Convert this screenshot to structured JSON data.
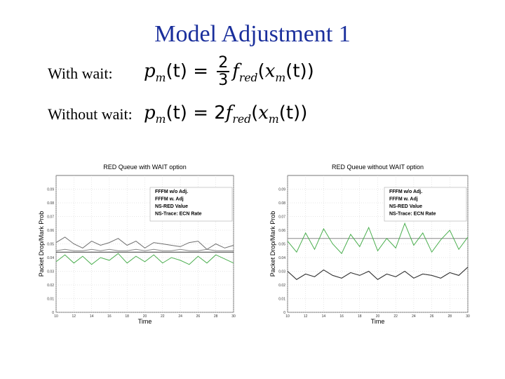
{
  "slide": {
    "title": "Model Adjustment 1",
    "with_wait_label": "With wait:",
    "without_wait_label": "Without wait:",
    "formula_with": {
      "lhs": "p",
      "lhs_sub": "m",
      "lhs_arg": "(t) =",
      "num": "2",
      "den": "3",
      "f": "f",
      "f_sub": "red",
      "arg_open": "(",
      "x": "x",
      "x_sub": "m",
      "arg_close": "(t))"
    },
    "formula_without": {
      "lhs": "p",
      "lhs_sub": "m",
      "lhs_arg": "(t) = 2",
      "f": "f",
      "f_sub": "red",
      "arg_open": "(",
      "x": "x",
      "x_sub": "m",
      "arg_close": "(t))"
    }
  },
  "chart_data": [
    {
      "type": "line",
      "title": "RED Queue with WAIT option",
      "xlabel": "Time",
      "ylabel": "Packet Drop/Mark Prob",
      "xlim": [
        10,
        30
      ],
      "ylim": [
        0,
        0.1
      ],
      "xticks": [
        "10",
        "12",
        "14",
        "16",
        "18",
        "20",
        "22",
        "24",
        "26",
        "28",
        "30"
      ],
      "yticks": [
        "0",
        "0.01",
        "0.02",
        "0.03",
        "0.04",
        "0.05",
        "0.06",
        "0.07",
        "0.08",
        "0.09"
      ],
      "grid": true,
      "legend_position": "top-right",
      "series": [
        {
          "name": "FFFM w/o Adj.",
          "color": "#6e6e6e",
          "x": [
            10,
            11,
            12,
            13,
            14,
            15,
            16,
            17,
            18,
            19,
            20,
            21,
            22,
            23,
            24,
            25,
            26,
            27,
            28,
            29,
            30
          ],
          "values": [
            0.051,
            0.055,
            0.05,
            0.047,
            0.052,
            0.049,
            0.051,
            0.054,
            0.049,
            0.052,
            0.047,
            0.051,
            0.05,
            0.049,
            0.048,
            0.051,
            0.052,
            0.046,
            0.05,
            0.047,
            0.049
          ]
        },
        {
          "name": "FFFM w. Adj",
          "color": "#888888",
          "x": [
            10,
            11,
            12,
            13,
            14,
            15,
            16,
            17,
            18,
            19,
            20,
            21,
            22,
            23,
            24,
            25,
            26,
            27,
            28,
            29,
            30
          ],
          "values": [
            0.045,
            0.046,
            0.045,
            0.045,
            0.046,
            0.045,
            0.046,
            0.045,
            0.045,
            0.046,
            0.045,
            0.046,
            0.045,
            0.045,
            0.046,
            0.045,
            0.045,
            0.046,
            0.045,
            0.045,
            0.045
          ]
        },
        {
          "name": "NS-RED Value",
          "color": "#333333",
          "x": [
            10,
            11,
            12,
            13,
            14,
            15,
            16,
            17,
            18,
            19,
            20,
            21,
            22,
            23,
            24,
            25,
            26,
            27,
            28,
            29,
            30
          ],
          "values": [
            0.044,
            0.044,
            0.044,
            0.044,
            0.044,
            0.044,
            0.044,
            0.044,
            0.044,
            0.044,
            0.044,
            0.044,
            0.044,
            0.044,
            0.044,
            0.044,
            0.044,
            0.044,
            0.044,
            0.044,
            0.044
          ]
        },
        {
          "name": "NS-Trace: ECN Rate",
          "color": "#4caf50",
          "x": [
            10,
            11,
            12,
            13,
            14,
            15,
            16,
            17,
            18,
            19,
            20,
            21,
            22,
            23,
            24,
            25,
            26,
            27,
            28,
            29,
            30
          ],
          "values": [
            0.037,
            0.042,
            0.036,
            0.041,
            0.035,
            0.04,
            0.038,
            0.043,
            0.036,
            0.041,
            0.037,
            0.042,
            0.036,
            0.04,
            0.038,
            0.035,
            0.041,
            0.036,
            0.042,
            0.039,
            0.036
          ]
        }
      ]
    },
    {
      "type": "line",
      "title": "RED Queue without WAIT option",
      "xlabel": "Time",
      "ylabel": "Packet Drop/Mark Prob",
      "xlim": [
        10,
        30
      ],
      "ylim": [
        0,
        0.1
      ],
      "xticks": [
        "10",
        "12",
        "14",
        "16",
        "18",
        "20",
        "22",
        "24",
        "26",
        "28",
        "30"
      ],
      "yticks": [
        "0",
        "0.01",
        "0.02",
        "0.03",
        "0.04",
        "0.05",
        "0.06",
        "0.07",
        "0.08",
        "0.09"
      ],
      "grid": true,
      "legend_position": "top-right",
      "series": [
        {
          "name": "FFFM w/o Adj.",
          "color": "#6e6e6e",
          "x": [
            10,
            11,
            12,
            13,
            14,
            15,
            16,
            17,
            18,
            19,
            20,
            21,
            22,
            23,
            24,
            25,
            26,
            27,
            28,
            29,
            30
          ],
          "values": [
            0.03,
            0.024,
            0.028,
            0.026,
            0.031,
            0.027,
            0.025,
            0.029,
            0.027,
            0.03,
            0.024,
            0.028,
            0.026,
            0.03,
            0.025,
            0.028,
            0.027,
            0.025,
            0.029,
            0.027,
            0.033
          ]
        },
        {
          "name": "FFFM w. Adj",
          "color": "#888888",
          "x": [
            10,
            11,
            12,
            13,
            14,
            15,
            16,
            17,
            18,
            19,
            20,
            21,
            22,
            23,
            24,
            25,
            26,
            27,
            28,
            29,
            30
          ],
          "values": [
            0.054,
            0.054,
            0.054,
            0.054,
            0.054,
            0.054,
            0.054,
            0.054,
            0.054,
            0.054,
            0.054,
            0.054,
            0.054,
            0.054,
            0.054,
            0.054,
            0.054,
            0.054,
            0.054,
            0.054,
            0.054
          ]
        },
        {
          "name": "NS-RED Value",
          "color": "#333333",
          "x": [
            10,
            11,
            12,
            13,
            14,
            15,
            16,
            17,
            18,
            19,
            20,
            21,
            22,
            23,
            24,
            25,
            26,
            27,
            28,
            29,
            30
          ],
          "values": [
            0.03,
            0.024,
            0.028,
            0.026,
            0.031,
            0.027,
            0.025,
            0.029,
            0.027,
            0.03,
            0.024,
            0.028,
            0.026,
            0.03,
            0.025,
            0.028,
            0.027,
            0.025,
            0.029,
            0.027,
            0.033
          ]
        },
        {
          "name": "NS-Trace: ECN Rate",
          "color": "#4caf50",
          "x": [
            10,
            11,
            12,
            13,
            14,
            15,
            16,
            17,
            18,
            19,
            20,
            21,
            22,
            23,
            24,
            25,
            26,
            27,
            28,
            29,
            30
          ],
          "values": [
            0.052,
            0.044,
            0.058,
            0.046,
            0.061,
            0.05,
            0.043,
            0.057,
            0.048,
            0.062,
            0.045,
            0.054,
            0.047,
            0.065,
            0.049,
            0.058,
            0.044,
            0.053,
            0.06,
            0.046,
            0.055
          ]
        }
      ]
    }
  ]
}
